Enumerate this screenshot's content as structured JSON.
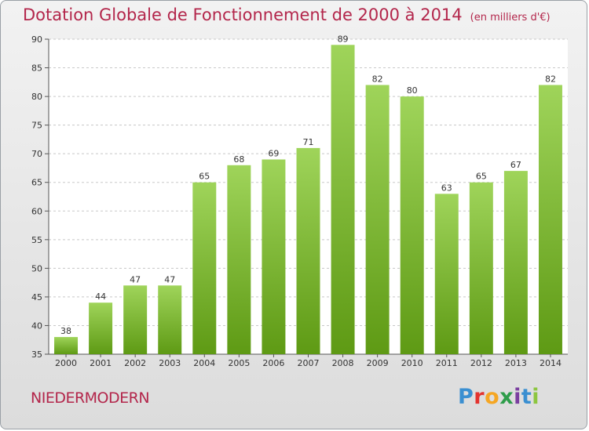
{
  "header": {
    "title": "Dotation Globale de Fonctionnement de 2000 à 2014",
    "subtitle": "(en milliers d'€)"
  },
  "commune": "NIEDERMODERN",
  "logo": {
    "letters": [
      "P",
      "r",
      "o",
      "x",
      "i",
      "t",
      "i"
    ],
    "colors": [
      "#3a8fd1",
      "#e3342f",
      "#f5a623",
      "#2e9d4a",
      "#7b3fa0",
      "#3a8fd1",
      "#8cc63f"
    ]
  },
  "colors": {
    "bar_top": "#9fd45a",
    "bar_bottom": "#5e9a14",
    "title": "#b3264b",
    "grid": "#c8c8c8"
  },
  "chart_data": {
    "type": "bar",
    "title": "Dotation Globale de Fonctionnement de 2000 à 2014",
    "subtitle": "(en milliers d'€)",
    "categories": [
      "2000",
      "2001",
      "2002",
      "2003",
      "2004",
      "2005",
      "2006",
      "2007",
      "2008",
      "2009",
      "2010",
      "2011",
      "2012",
      "2013",
      "2014"
    ],
    "values": [
      38,
      44,
      47,
      47,
      65,
      68,
      69,
      71,
      89,
      82,
      80,
      63,
      65,
      67,
      82
    ],
    "xlabel": "",
    "ylabel": "",
    "ylim": [
      35,
      90
    ],
    "yticks": [
      35,
      40,
      45,
      50,
      55,
      60,
      65,
      70,
      75,
      80,
      85,
      90
    ],
    "grid": true,
    "data_labels": true
  }
}
